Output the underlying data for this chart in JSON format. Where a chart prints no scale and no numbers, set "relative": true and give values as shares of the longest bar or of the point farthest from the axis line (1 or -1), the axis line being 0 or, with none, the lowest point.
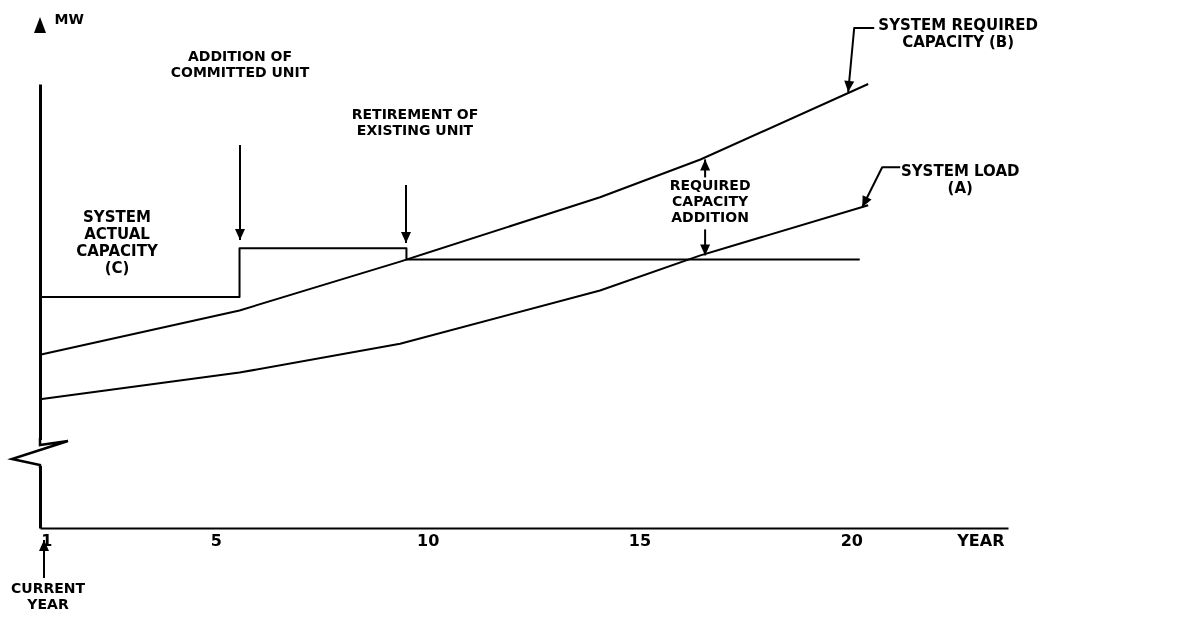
{
  "chart_data": {
    "type": "line",
    "relative": true,
    "ylabel": "MW",
    "xlabel": "YEAR",
    "xlim": [
      0.85,
      23.7
    ],
    "xticks": [
      1,
      5,
      10,
      15,
      20
    ],
    "series": [
      {
        "name": "SYSTEM REQUIRED\nCAPACITY (B)",
        "color": "#000000",
        "x": [
          0.85,
          5.56,
          9.35,
          14.07,
          16.44,
          20.4
        ],
        "values": [
          0.39,
          0.49,
          0.6,
          0.745,
          0.83,
          1.0
        ]
      },
      {
        "name": "SYSTEM LOAD\n(A)",
        "color": "#000000",
        "x": [
          0.85,
          5.56,
          9.35,
          14.07,
          16.44,
          20.4
        ],
        "values": [
          0.29,
          0.35,
          0.415,
          0.535,
          0.614,
          0.727
        ]
      },
      {
        "name": "SYSTEM\nACTUAL\nCAPACITY\n(C)",
        "type": "step",
        "color": "#000000",
        "x": [
          0.85,
          5.56,
          9.5,
          20.2
        ],
        "values": [
          0.52,
          0.63,
          0.605,
          0.605
        ]
      }
    ],
    "annotations": [
      "ADDITION OF\nCOMMITTED UNIT",
      "RETIREMENT OF\nEXISTING UNIT",
      {
        "text": "REQUIRED\nCAPACITY\nADDITION",
        "x": 16.55,
        "y": 0.614
      },
      "CURRENT\nYEAR"
    ]
  }
}
